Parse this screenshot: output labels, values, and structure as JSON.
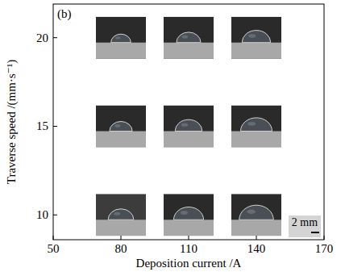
{
  "chart_data": {
    "type": "scatter",
    "marker": "photo",
    "x_label": "Deposition current /A",
    "y_label": "Traverse speed /(mm·s⁻¹)",
    "annotations": [
      "(b)",
      "2 mm"
    ],
    "x": [
      80,
      110,
      140,
      80,
      110,
      140,
      80,
      110,
      140
    ],
    "values": [
      10,
      10,
      10,
      15,
      15,
      15,
      20,
      20,
      20
    ],
    "xlim": [
      50,
      170
    ],
    "xticks": [
      50,
      80,
      110,
      140,
      170
    ],
    "ylim": [
      8.6,
      21.9
    ],
    "yticks": [
      10,
      15,
      20
    ],
    "grid": false
  }
}
